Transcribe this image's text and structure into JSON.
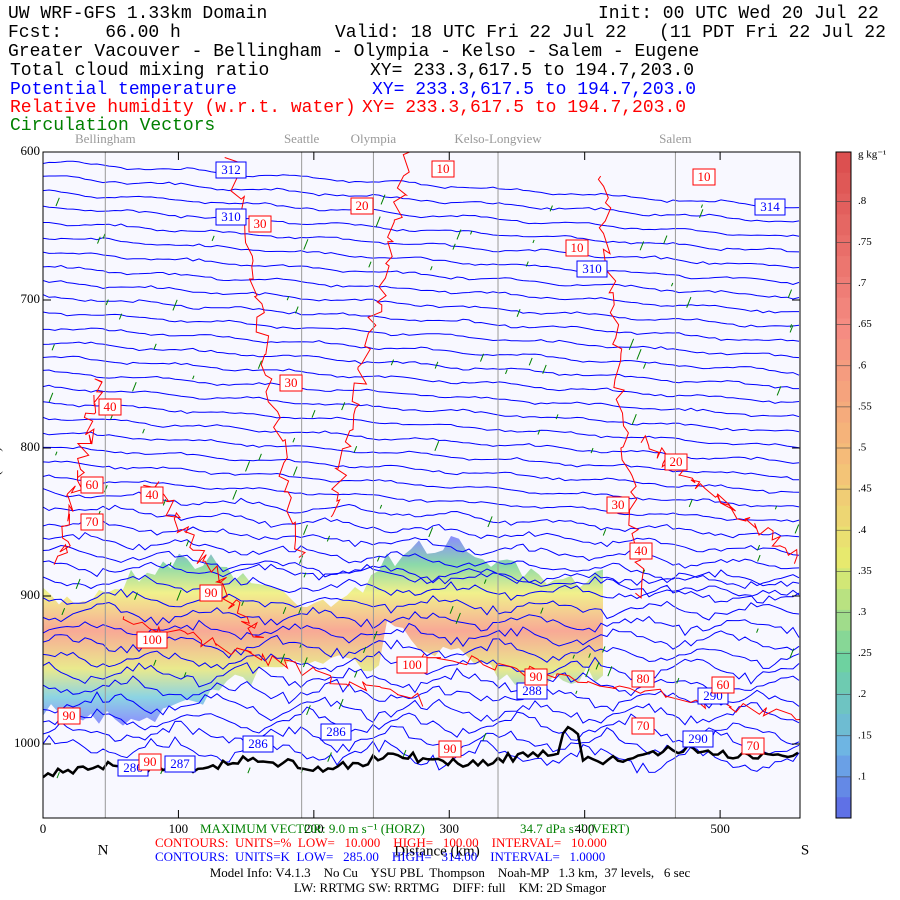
{
  "chart_data": {
    "type": "cross-section",
    "title": "UW WRF-GFS 1.33km Domain",
    "init": "Init: 00 UTC Wed 20 Jul 22",
    "fcst": "Fcst:    66.00 h",
    "valid": "Valid: 18 UTC Fri 22 Jul 22   (11 PDT Fri 22 Jul 22  )",
    "subtitle": "Greater Vacouver - Bellingham - Olympia - Kelso - Salem - Eugene",
    "fields": [
      {
        "name": "Total cloud mixing ratio",
        "color": "#000000",
        "xy": "XY= 233.3,617.5 to 194.7,203.0"
      },
      {
        "name": "Potential temperature",
        "color": "#0000ff",
        "xy": "XY= 233.3,617.5 to 194.7,203.0"
      },
      {
        "name": "Relative humidity (w.r.t. water)",
        "color": "#ff0000",
        "xy": "XY= 233.3,617.5 to 194.7,203.0"
      },
      {
        "name": "Circulation Vectors",
        "color": "#008000"
      }
    ],
    "places": [
      {
        "name": "Bellingham",
        "km": 46
      },
      {
        "name": "Seattle",
        "km": 191
      },
      {
        "name": "Olympia",
        "km": 244
      },
      {
        "name": "Kelso-Longview",
        "km": 336
      },
      {
        "name": "Salem",
        "km": 467
      }
    ],
    "xlabel": "Distance (km)",
    "ylabel": "Pressure (hPa)",
    "north": "N",
    "south": "S",
    "xlim": [
      0,
      559
    ],
    "xticks": [
      0,
      100,
      200,
      300,
      400,
      500
    ],
    "ylim": [
      600,
      1050
    ],
    "yticks": [
      600,
      700,
      800,
      900,
      1000
    ],
    "colorbar": {
      "label": "g kg⁻¹",
      "lim": [
        0.05,
        0.86
      ],
      "ticks": [
        {
          "value": 0.1,
          "label": ".1"
        },
        {
          "value": 0.15,
          "label": ".15"
        },
        {
          "value": 0.2,
          "label": ".2"
        },
        {
          "value": 0.25,
          "label": ".25"
        },
        {
          "value": 0.3,
          "label": ".3"
        },
        {
          "value": 0.35,
          "label": ".35"
        },
        {
          "value": 0.4,
          "label": ".4"
        },
        {
          "value": 0.45,
          "label": ".45"
        },
        {
          "value": 0.5,
          "label": ".5"
        },
        {
          "value": 0.55,
          "label": ".55"
        },
        {
          "value": 0.6,
          "label": ".6"
        },
        {
          "value": 0.65,
          "label": ".65"
        },
        {
          "value": 0.7,
          "label": ".7"
        },
        {
          "value": 0.75,
          "label": ".75"
        },
        {
          "value": 0.8,
          "label": ".8"
        }
      ]
    },
    "theta_labels": [
      312,
      310,
      314,
      310,
      286,
      286,
      288,
      290,
      290,
      286,
      287
    ],
    "rh_labels": [
      10,
      10,
      20,
      30,
      10,
      30,
      40,
      20,
      60,
      40,
      70,
      30,
      40,
      90,
      100,
      100,
      90,
      80,
      60,
      90,
      70,
      70,
      90,
      90
    ],
    "vector_horz": "MAXIMUM VECTOR: 9.0 m s⁻¹ (HORZ)",
    "vector_vert": "34.7 dPa s⁻¹ (VERT)",
    "contours_rh": "CONTOURS:  UNITS=%  LOW=   10.000    HIGH=   100.00    INTERVAL=   10.000",
    "contours_theta": "CONTOURS:  UNITS=K  LOW=   285.00    HIGH=   314.00    INTERVAL=   1.0000",
    "model_info": "Model Info: V4.1.3    No Cu    YSU PBL  Thompson    Noah-MP   1.3 km,  37 levels,   6 sec",
    "physics": "LW: RRTMG SW: RRTMG    DIFF: full    KM: 2D Smagor"
  }
}
